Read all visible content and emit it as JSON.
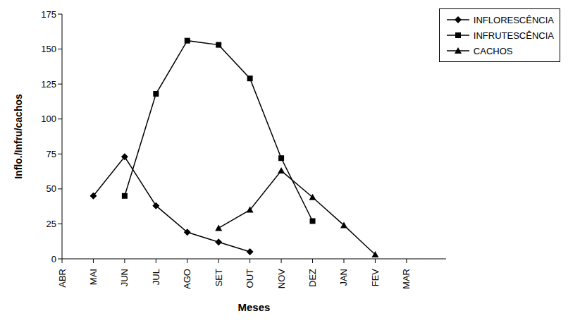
{
  "chart_data": {
    "type": "line",
    "x_label": "Meses",
    "y_label": "Inflo./Infru/cachos",
    "categories": [
      "ABR",
      "MAI",
      "JUN",
      "JUL",
      "AGO",
      "SET",
      "OUT",
      "NOV",
      "DEZ",
      "JAN",
      "FEV",
      "MAR"
    ],
    "series": [
      {
        "name": "INFLORESCÊNCIA",
        "color": "#000000",
        "marker": "diamond",
        "line_style": "solid",
        "values": [
          null,
          45,
          73,
          38,
          19,
          12,
          5,
          null,
          null,
          null,
          null,
          null
        ]
      },
      {
        "name": "INFRUTESCÊNCIA",
        "color": "#000000",
        "marker": "square",
        "line_style": "solid",
        "values": [
          null,
          null,
          45,
          118,
          156,
          153,
          129,
          72,
          27,
          null,
          null,
          null
        ]
      },
      {
        "name": "CACHOS",
        "color": "#000000",
        "marker": "triangle",
        "line_style": "solid",
        "values": [
          null,
          null,
          null,
          null,
          null,
          22,
          35,
          63,
          44,
          24,
          3,
          null
        ]
      }
    ],
    "ylim": [
      0,
      175
    ],
    "yticks": [
      0,
      25,
      50,
      75,
      100,
      125,
      150,
      175
    ],
    "grid": false,
    "legend": "upper right"
  }
}
